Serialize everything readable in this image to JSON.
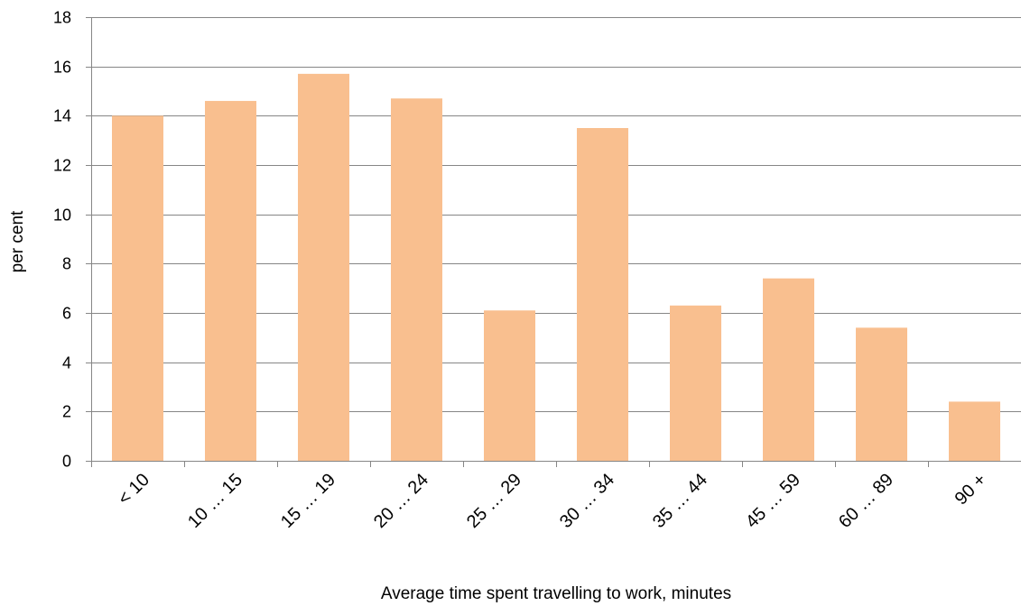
{
  "chart_data": {
    "type": "bar",
    "title": "",
    "xlabel": "Average time spent travelling to work, minutes",
    "ylabel": "per cent",
    "categories": [
      "< 10",
      "10 … 15",
      "15 … 19",
      "20 … 24",
      "25 … 29",
      "30 … 34",
      "35 … 44",
      "45 … 59",
      "60 … 89",
      "90 +"
    ],
    "values": [
      14.0,
      14.6,
      15.7,
      14.7,
      6.1,
      13.5,
      6.3,
      7.4,
      5.4,
      2.4
    ],
    "ylim": [
      0,
      18
    ],
    "yticks": [
      0,
      2,
      4,
      6,
      8,
      10,
      12,
      14,
      16,
      18
    ],
    "grid": true,
    "legend": "none",
    "colors": {
      "bar": "#F9BF8F",
      "grid": "#868686",
      "axis": "#868686"
    }
  }
}
